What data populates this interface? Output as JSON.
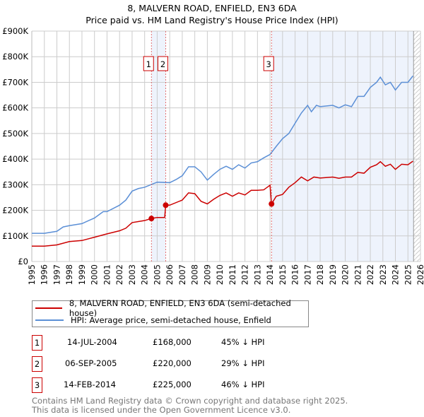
{
  "chart_data": {
    "type": "line",
    "title": "8, MALVERN ROAD, ENFIELD, EN3 6DA",
    "subtitle": "Price paid vs. HM Land Registry's House Price Index (HPI)",
    "xlim": [
      1995,
      2026
    ],
    "ylim": [
      0,
      900000
    ],
    "ytick_labels": [
      "£0",
      "£100K",
      "£200K",
      "£300K",
      "£400K",
      "£500K",
      "£600K",
      "£700K",
      "£800K",
      "£900K"
    ],
    "xtick_labels": [
      "1995",
      "1996",
      "1997",
      "1998",
      "1999",
      "2000",
      "2001",
      "2002",
      "2003",
      "2004",
      "2005",
      "2006",
      "2007",
      "2008",
      "2009",
      "2010",
      "2011",
      "2012",
      "2013",
      "2014",
      "2015",
      "2016",
      "2017",
      "2018",
      "2019",
      "2020",
      "2021",
      "2022",
      "2023",
      "2024",
      "2025",
      "2026"
    ],
    "grid": true,
    "series": [
      {
        "name": "8, MALVERN ROAD, ENFIELD, EN3 6DA (semi-detached house)",
        "color": "#cc0000",
        "x": [
          1995,
          1996,
          1997,
          1998,
          1999,
          2000,
          2001,
          2002,
          2002.5,
          2003,
          2004,
          2004.54,
          2005,
          2005.6,
          2005.68,
          2006,
          2007,
          2007.5,
          2008,
          2008.5,
          2009,
          2009.5,
          2010,
          2010.5,
          2011,
          2011.5,
          2012,
          2012.5,
          2013,
          2013.5,
          2014,
          2014.12,
          2014.5,
          2015,
          2015.5,
          2016,
          2016.5,
          2017,
          2017.5,
          2018,
          2019,
          2019.5,
          2020,
          2020.5,
          2021,
          2021.5,
          2022,
          2022.5,
          2022.8,
          2023.2,
          2023.6,
          2024,
          2024.5,
          2025,
          2025.4
        ],
        "y": [
          60,
          60,
          65,
          78,
          82,
          95,
          108,
          120,
          130,
          152,
          160,
          168,
          172,
          172,
          220,
          220,
          240,
          268,
          265,
          235,
          225,
          243,
          258,
          268,
          255,
          268,
          260,
          278,
          278,
          280,
          298,
          225,
          255,
          262,
          290,
          308,
          330,
          315,
          330,
          326,
          330,
          325,
          330,
          330,
          348,
          345,
          368,
          378,
          390,
          372,
          380,
          360,
          380,
          378,
          392
        ]
      },
      {
        "name": "HPI: Average price, semi-detached house, Enfield",
        "color": "#5b8fd6",
        "x": [
          1995,
          1996,
          1997,
          1997.5,
          1998,
          1999,
          2000,
          2000.7,
          2001,
          2002,
          2002.5,
          2003,
          2003.5,
          2004,
          2004.5,
          2005,
          2006,
          2006.5,
          2007,
          2007.5,
          2008,
          2008.5,
          2009,
          2009.5,
          2010,
          2010.5,
          2011,
          2011.5,
          2012,
          2012.5,
          2013,
          2013.5,
          2014,
          2014.5,
          2015,
          2015.5,
          2016,
          2016.5,
          2017,
          2017.3,
          2017.7,
          2018,
          2019,
          2019.5,
          2020,
          2020.5,
          2021,
          2021.5,
          2022,
          2022.5,
          2022.8,
          2023.2,
          2023.6,
          2024,
          2024.5,
          2025,
          2025.4
        ],
        "y": [
          110,
          110,
          118,
          135,
          140,
          148,
          170,
          195,
          195,
          220,
          240,
          275,
          285,
          290,
          300,
          310,
          308,
          320,
          335,
          370,
          370,
          350,
          318,
          340,
          360,
          372,
          360,
          378,
          365,
          385,
          390,
          405,
          418,
          450,
          480,
          500,
          540,
          580,
          610,
          585,
          610,
          605,
          610,
          600,
          612,
          605,
          645,
          645,
          680,
          700,
          720,
          690,
          700,
          670,
          700,
          700,
          725
        ]
      }
    ],
    "y_unit": "thousand GBP",
    "sales": [
      {
        "label": "1",
        "x": 2004.54,
        "y": 168
      },
      {
        "label": "2",
        "x": 2005.68,
        "y": 220
      },
      {
        "label": "3",
        "x": 2014.12,
        "y": 225
      }
    ],
    "legend_placement": "below"
  },
  "transactions": [
    {
      "num": "1",
      "date": "14-JUL-2004",
      "price": "£168,000",
      "hpi": "45% ↓ HPI"
    },
    {
      "num": "2",
      "date": "06-SEP-2005",
      "price": "£220,000",
      "hpi": "29% ↓ HPI"
    },
    {
      "num": "3",
      "date": "14-FEB-2014",
      "price": "£225,000",
      "hpi": "46% ↓ HPI"
    }
  ],
  "footer": {
    "line1": "Contains HM Land Registry data © Crown copyright and database right 2025.",
    "line2": "This data is licensed under the Open Government Licence v3.0."
  }
}
